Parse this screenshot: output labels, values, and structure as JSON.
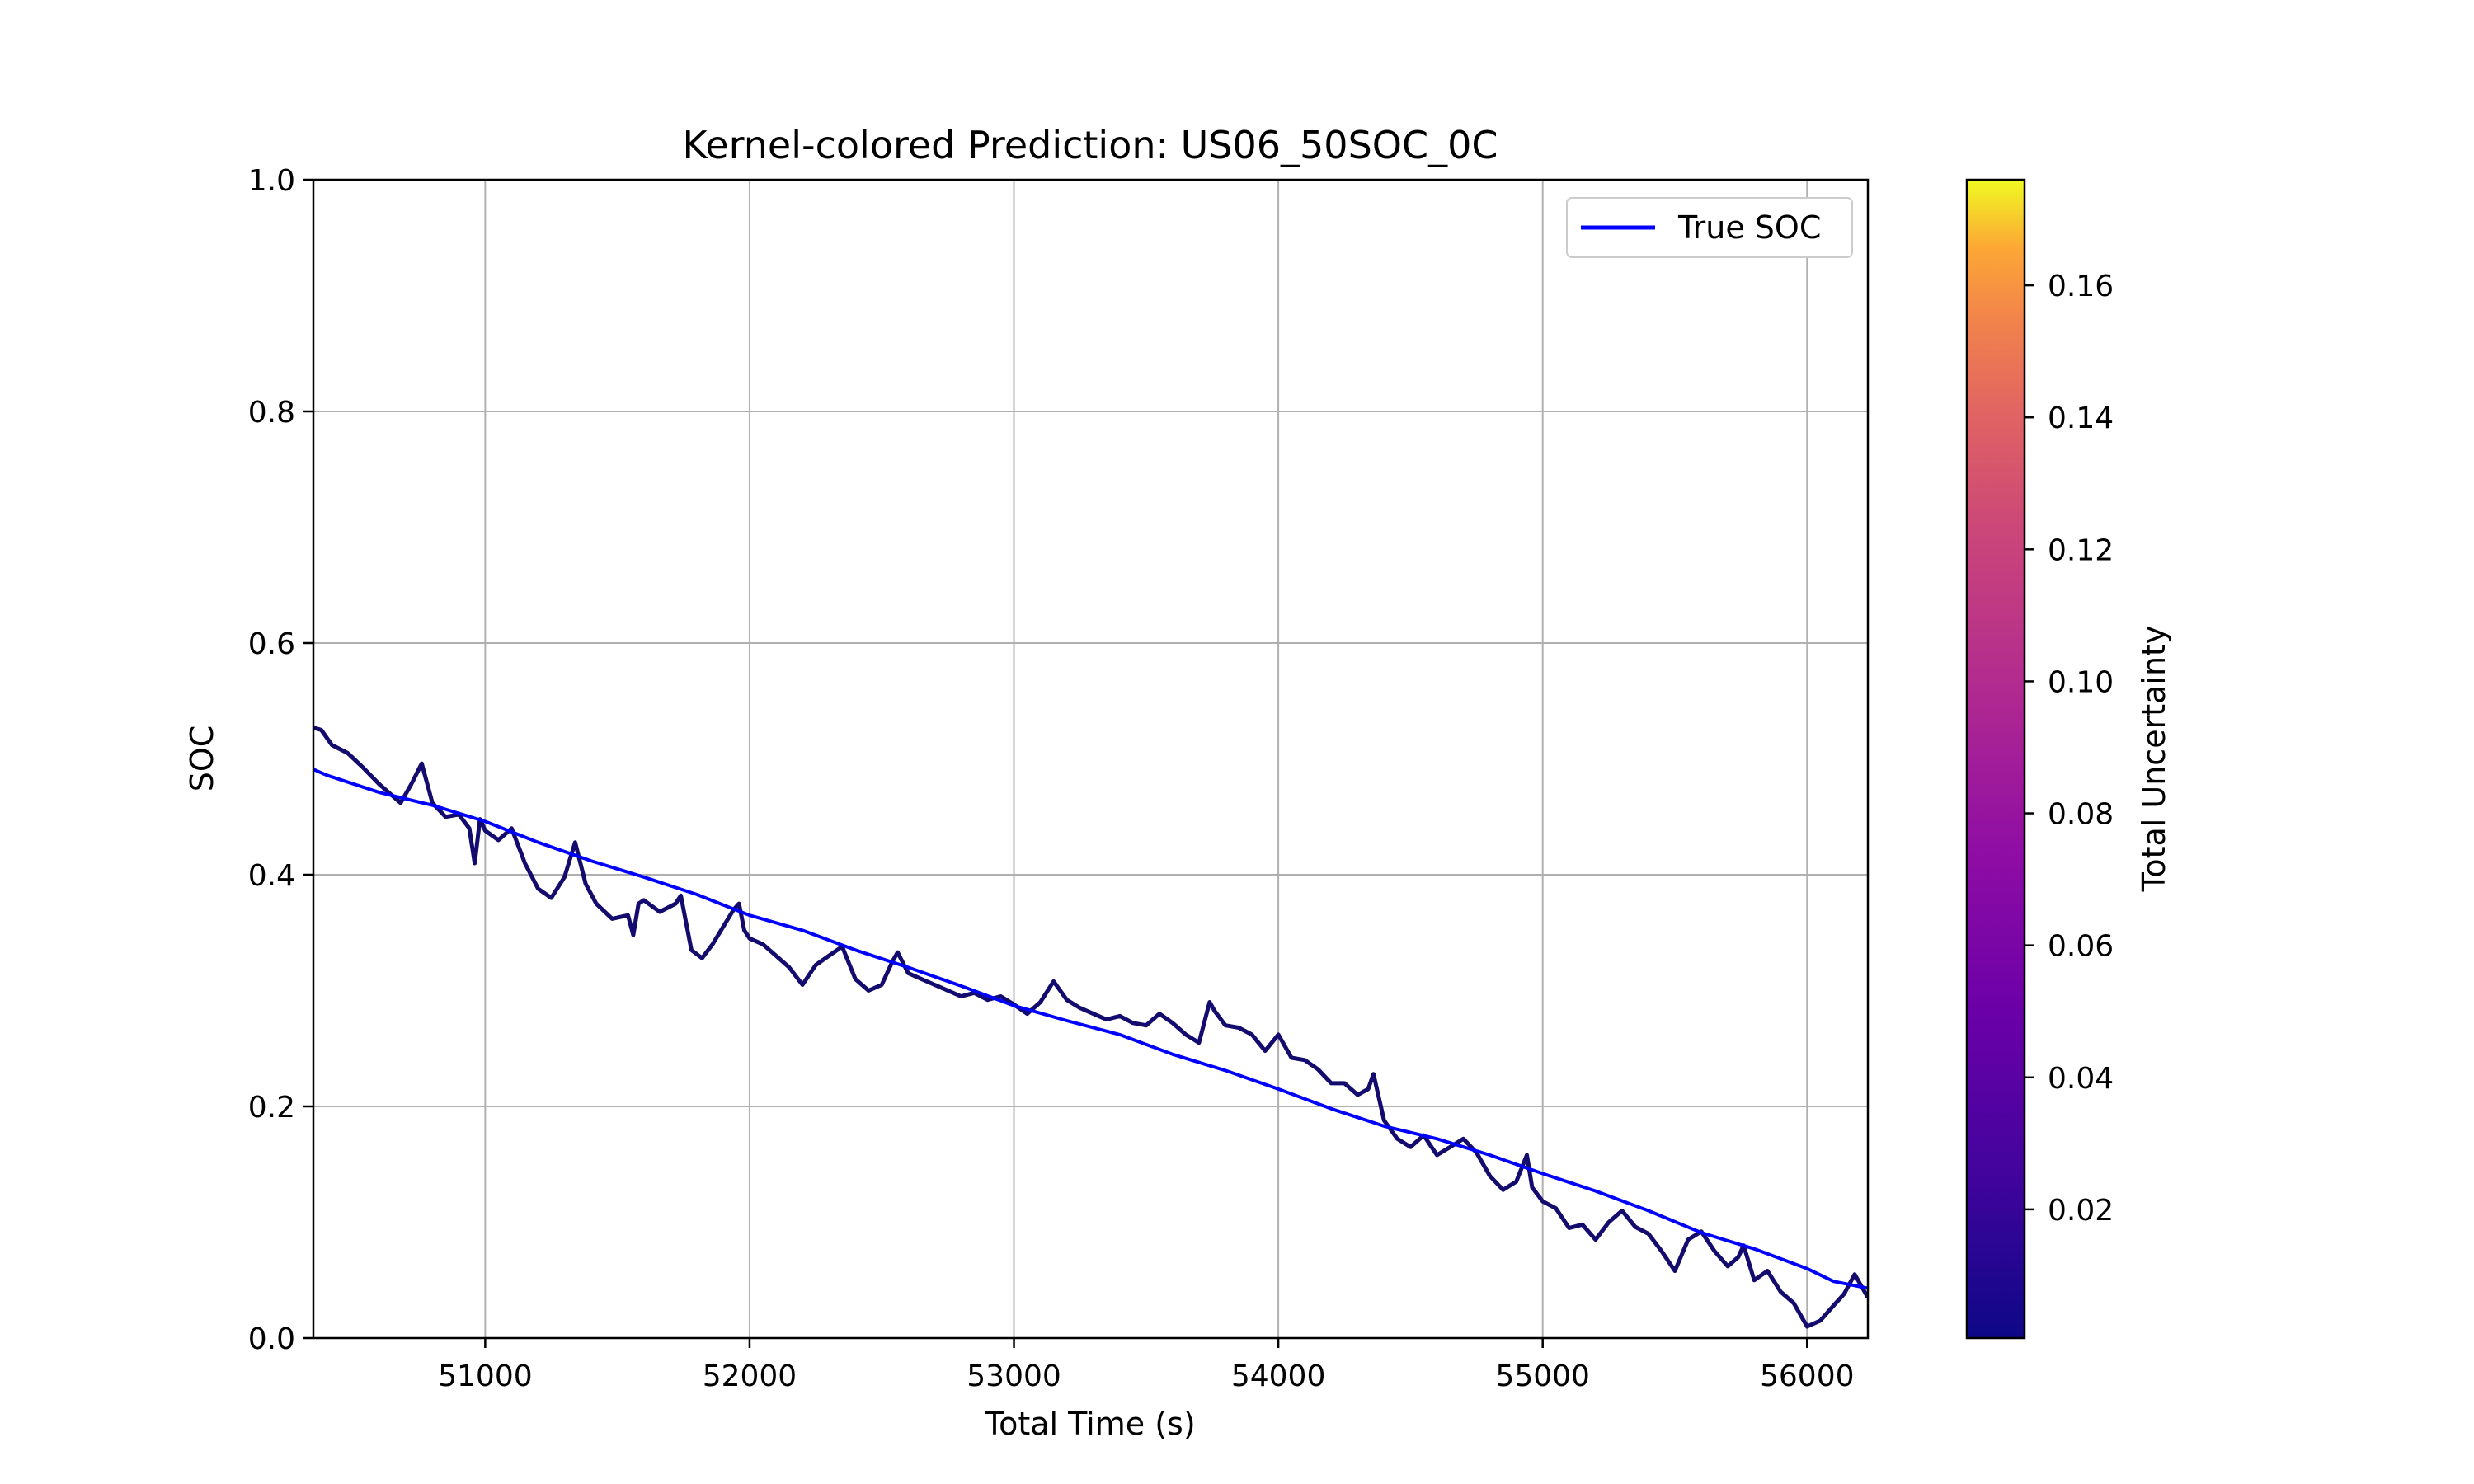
{
  "chart_data": {
    "type": "line",
    "title": "Kernel-colored Prediction: US06_50SOC_0C",
    "xlabel": "Total Time (s)",
    "ylabel": "SOC",
    "xlim": [
      50350,
      56230
    ],
    "ylim": [
      0.0,
      1.0
    ],
    "xticks": [
      51000,
      52000,
      53000,
      54000,
      55000,
      56000
    ],
    "yticks": [
      0.0,
      0.2,
      0.4,
      0.6,
      0.8,
      1.0
    ],
    "ytick_labels": [
      "0.0",
      "0.2",
      "0.4",
      "0.6",
      "0.8",
      "1.0"
    ],
    "grid": true,
    "legend": {
      "position": "top-right",
      "entries": [
        "True SOC"
      ]
    },
    "series": [
      {
        "name": "True SOC",
        "color": "#0000ff",
        "x": [
          50350,
          50400,
          50600,
          50800,
          51000,
          51200,
          51400,
          51600,
          51800,
          52000,
          52200,
          52400,
          52600,
          52800,
          53000,
          53200,
          53400,
          53600,
          53800,
          54000,
          54200,
          54400,
          54600,
          54800,
          55000,
          55200,
          55400,
          55600,
          55800,
          56000,
          56100,
          56230
        ],
        "y": [
          0.491,
          0.486,
          0.471,
          0.46,
          0.446,
          0.428,
          0.412,
          0.398,
          0.383,
          0.365,
          0.352,
          0.335,
          0.32,
          0.304,
          0.287,
          0.274,
          0.262,
          0.245,
          0.231,
          0.215,
          0.198,
          0.183,
          0.172,
          0.158,
          0.142,
          0.127,
          0.11,
          0.091,
          0.077,
          0.06,
          0.049,
          0.043
        ]
      },
      {
        "color": "#140b6e",
        "x": [
          50350,
          50380,
          50420,
          50480,
          50540,
          50600,
          50640,
          50680,
          50720,
          50760,
          50800,
          50850,
          50900,
          50940,
          50960,
          50980,
          51000,
          51050,
          51100,
          51150,
          51200,
          51250,
          51300,
          51340,
          51380,
          51420,
          51480,
          51540,
          51560,
          51580,
          51600,
          51660,
          51720,
          51740,
          51780,
          51820,
          51860,
          51900,
          51940,
          51960,
          51980,
          52000,
          52050,
          52100,
          52150,
          52200,
          52250,
          52300,
          52350,
          52400,
          52450,
          52500,
          52540,
          52560,
          52600,
          52650,
          52700,
          52750,
          52800,
          52850,
          52900,
          52950,
          53000,
          53050,
          53100,
          53150,
          53200,
          53250,
          53300,
          53350,
          53400,
          53450,
          53500,
          53550,
          53600,
          53650,
          53700,
          53740,
          53760,
          53800,
          53850,
          53900,
          53950,
          54000,
          54050,
          54100,
          54150,
          54200,
          54250,
          54300,
          54340,
          54360,
          54400,
          54450,
          54500,
          54550,
          54600,
          54650,
          54700,
          54750,
          54800,
          54850,
          54900,
          54940,
          54960,
          55000,
          55050,
          55100,
          55150,
          55200,
          55250,
          55300,
          55350,
          55400,
          55450,
          55500,
          55550,
          55600,
          55650,
          55700,
          55740,
          55760,
          55800,
          55850,
          55900,
          55950,
          56000,
          56050,
          56100,
          56140,
          56180,
          56230
        ],
        "y": [
          0.527,
          0.525,
          0.512,
          0.505,
          0.492,
          0.478,
          0.47,
          0.462,
          0.478,
          0.496,
          0.462,
          0.45,
          0.452,
          0.44,
          0.41,
          0.448,
          0.438,
          0.43,
          0.44,
          0.41,
          0.388,
          0.38,
          0.398,
          0.428,
          0.392,
          0.375,
          0.362,
          0.365,
          0.348,
          0.375,
          0.378,
          0.368,
          0.375,
          0.382,
          0.335,
          0.328,
          0.34,
          0.355,
          0.37,
          0.375,
          0.352,
          0.345,
          0.34,
          0.33,
          0.32,
          0.305,
          0.322,
          0.33,
          0.338,
          0.31,
          0.3,
          0.305,
          0.325,
          0.333,
          0.315,
          0.31,
          0.305,
          0.3,
          0.295,
          0.298,
          0.292,
          0.295,
          0.288,
          0.28,
          0.29,
          0.308,
          0.292,
          0.285,
          0.28,
          0.275,
          0.278,
          0.272,
          0.27,
          0.28,
          0.272,
          0.262,
          0.255,
          0.29,
          0.282,
          0.27,
          0.268,
          0.262,
          0.248,
          0.262,
          0.242,
          0.24,
          0.232,
          0.22,
          0.22,
          0.21,
          0.215,
          0.228,
          0.188,
          0.172,
          0.165,
          0.175,
          0.158,
          0.165,
          0.172,
          0.16,
          0.14,
          0.128,
          0.135,
          0.158,
          0.13,
          0.118,
          0.112,
          0.095,
          0.098,
          0.085,
          0.1,
          0.11,
          0.096,
          0.09,
          0.075,
          0.058,
          0.085,
          0.092,
          0.075,
          0.062,
          0.07,
          0.08,
          0.05,
          0.058,
          0.04,
          0.03,
          0.01,
          0.015,
          0.028,
          0.038,
          0.055,
          0.035
        ]
      }
    ],
    "colorbar": {
      "label": "Total Uncertainty",
      "min": 0.0005,
      "max": 0.176,
      "ticks": [
        0.02,
        0.04,
        0.06,
        0.08,
        0.1,
        0.12,
        0.14,
        0.16
      ],
      "tick_labels": [
        "0.02",
        "0.04",
        "0.06",
        "0.08",
        "0.10",
        "0.12",
        "0.14",
        "0.16"
      ],
      "colormap": "plasma"
    }
  }
}
